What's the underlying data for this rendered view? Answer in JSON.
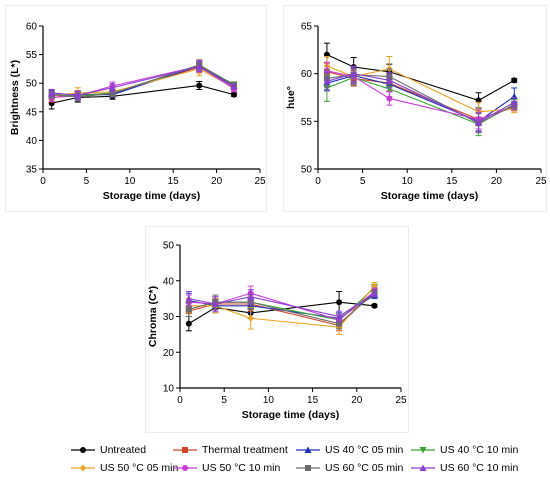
{
  "chart_data": [
    {
      "type": "line",
      "id": "brightness",
      "title": "",
      "xlabel": "Storage time (days)",
      "ylabel": "Brightness (L*)",
      "xlim": [
        0,
        25
      ],
      "ylim": [
        35,
        60
      ],
      "xticks": [
        "0",
        "5",
        "10",
        "15",
        "20",
        "25"
      ],
      "yticks": [
        "35",
        "40",
        "45",
        "50",
        "55",
        "60"
      ],
      "x": [
        1,
        4,
        8,
        18,
        22
      ],
      "series": [
        {
          "name": "Untreated",
          "values": [
            46.5,
            47.5,
            47.7,
            49.6,
            48.0
          ],
          "err": [
            1.0,
            0.8,
            0.5,
            0.7,
            0.3
          ]
        },
        {
          "name": "Thermal treatment",
          "values": [
            47.5,
            48.0,
            48.2,
            52.8,
            49.3
          ],
          "err": [
            0.8,
            0.7,
            0.6,
            1.0,
            0.5
          ]
        },
        {
          "name": "US 40 °C 05 min",
          "values": [
            48.2,
            48.0,
            48.0,
            53.0,
            49.5
          ],
          "err": [
            0.6,
            0.6,
            0.5,
            0.8,
            0.4
          ]
        },
        {
          "name": "US 40 °C 10 min",
          "values": [
            48.0,
            47.8,
            48.3,
            53.1,
            49.8
          ],
          "err": [
            0.6,
            0.7,
            0.6,
            0.8,
            0.4
          ]
        },
        {
          "name": "US 50 °C 05 min",
          "values": [
            47.8,
            48.3,
            48.5,
            52.5,
            49.2
          ],
          "err": [
            0.7,
            0.9,
            0.7,
            1.2,
            0.5
          ]
        },
        {
          "name": "US 50 °C 10 min",
          "values": [
            47.5,
            47.8,
            49.5,
            53.0,
            49.0
          ],
          "err": [
            0.7,
            0.7,
            0.7,
            0.9,
            0.5
          ]
        },
        {
          "name": "US 60 °C 05 min",
          "values": [
            48.0,
            47.6,
            48.2,
            53.2,
            49.7
          ],
          "err": [
            0.6,
            0.7,
            0.6,
            0.9,
            0.4
          ]
        },
        {
          "name": "US 60 °C 10 min",
          "values": [
            48.3,
            47.9,
            49.2,
            52.9,
            49.4
          ],
          "err": [
            0.6,
            0.7,
            0.7,
            0.9,
            0.4
          ]
        }
      ]
    },
    {
      "type": "line",
      "id": "hue",
      "title": "",
      "xlabel": "Storage time (days)",
      "ylabel": "hue°",
      "xlim": [
        0,
        25
      ],
      "ylim": [
        50,
        65
      ],
      "xticks": [
        "0",
        "5",
        "10",
        "15",
        "20",
        "25"
      ],
      "yticks": [
        "50",
        "55",
        "60",
        "65"
      ],
      "x": [
        1,
        4,
        8,
        18,
        22
      ],
      "series": [
        {
          "name": "Untreated",
          "values": [
            62.0,
            60.7,
            60.2,
            57.2,
            59.3
          ],
          "err": [
            1.2,
            1.0,
            0.8,
            0.8,
            0.2
          ]
        },
        {
          "name": "Thermal treatment",
          "values": [
            60.2,
            59.5,
            59.0,
            55.2,
            56.5
          ],
          "err": [
            0.9,
            0.8,
            0.8,
            1.0,
            0.4
          ]
        },
        {
          "name": "US 40 °C 05 min",
          "values": [
            59.0,
            59.8,
            58.9,
            55.0,
            57.6
          ],
          "err": [
            0.8,
            0.8,
            0.8,
            1.0,
            0.9
          ]
        },
        {
          "name": "US 40 °C 10 min",
          "values": [
            58.5,
            59.6,
            58.4,
            54.7,
            56.8
          ],
          "err": [
            1.4,
            0.8,
            0.8,
            1.2,
            0.5
          ]
        },
        {
          "name": "US 50 °C 05 min",
          "values": [
            60.8,
            59.7,
            60.5,
            56.0,
            56.3
          ],
          "err": [
            1.0,
            0.8,
            1.3,
            1.0,
            0.4
          ]
        },
        {
          "name": "US 50 °C 10 min",
          "values": [
            60.3,
            59.7,
            57.4,
            55.2,
            56.6
          ],
          "err": [
            0.9,
            0.8,
            0.7,
            1.0,
            0.4
          ]
        },
        {
          "name": "US 60 °C 05 min",
          "values": [
            59.5,
            59.9,
            59.7,
            54.8,
            56.7
          ],
          "err": [
            0.9,
            0.8,
            0.8,
            1.0,
            0.4
          ]
        },
        {
          "name": "US 60 °C 10 min",
          "values": [
            59.2,
            60.0,
            59.3,
            54.9,
            57.0
          ],
          "err": [
            0.9,
            0.8,
            0.8,
            1.0,
            0.5
          ]
        }
      ]
    },
    {
      "type": "line",
      "id": "chroma",
      "title": "",
      "xlabel": "Storage time (days)",
      "ylabel": "Chroma (C*)",
      "xlim": [
        0,
        25
      ],
      "ylim": [
        10,
        50
      ],
      "xticks": [
        "0",
        "5",
        "10",
        "15",
        "20",
        "25"
      ],
      "yticks": [
        "10",
        "20",
        "30",
        "40",
        "50"
      ],
      "x": [
        1,
        4,
        8,
        18,
        22
      ],
      "series": [
        {
          "name": "Untreated",
          "values": [
            28.0,
            32.5,
            31.0,
            34.0,
            33.0
          ],
          "err": [
            2.0,
            1.5,
            1.5,
            3.0,
            0.4
          ]
        },
        {
          "name": "Thermal treatment",
          "values": [
            31.5,
            33.5,
            33.5,
            27.5,
            37.0
          ],
          "err": [
            1.5,
            1.5,
            2.0,
            1.5,
            1.0
          ]
        },
        {
          "name": "US 40 °C 05 min",
          "values": [
            34.5,
            33.0,
            33.0,
            29.5,
            36.0
          ],
          "err": [
            2.0,
            2.0,
            2.0,
            1.5,
            1.0
          ]
        },
        {
          "name": "US 40 °C 10 min",
          "values": [
            32.0,
            34.0,
            34.0,
            29.0,
            38.0
          ],
          "err": [
            2.0,
            1.5,
            2.0,
            1.5,
            1.0
          ]
        },
        {
          "name": "US 50 °C 05 min",
          "values": [
            33.0,
            33.0,
            29.5,
            27.0,
            38.5
          ],
          "err": [
            2.0,
            2.0,
            3.0,
            2.0,
            1.0
          ]
        },
        {
          "name": "US 50 °C 10 min",
          "values": [
            34.0,
            33.5,
            36.5,
            29.0,
            37.0
          ],
          "err": [
            2.0,
            2.0,
            2.0,
            1.5,
            1.0
          ]
        },
        {
          "name": "US 60 °C 05 min",
          "values": [
            32.0,
            34.0,
            34.0,
            28.0,
            36.5
          ],
          "err": [
            2.0,
            2.0,
            2.0,
            1.5,
            1.0
          ]
        },
        {
          "name": "US 60 °C 10 min",
          "values": [
            35.0,
            33.5,
            35.5,
            30.0,
            36.5
          ],
          "err": [
            2.0,
            2.0,
            2.0,
            1.5,
            1.0
          ]
        }
      ]
    }
  ],
  "legend": [
    {
      "name": "Untreated",
      "color": "#000000",
      "marker": "circle"
    },
    {
      "name": "Thermal treatment",
      "color": "#d2452b",
      "marker": "square"
    },
    {
      "name": "US 40 °C 05 min",
      "color": "#1c2fb8",
      "marker": "triangle-up"
    },
    {
      "name": "US 40 °C 10 min",
      "color": "#3aa535",
      "marker": "triangle-down"
    },
    {
      "name": "US 50 °C 05 min",
      "color": "#e8a320",
      "marker": "diamond"
    },
    {
      "name": "US 50 °C 10 min",
      "color": "#c83ed6",
      "marker": "circle"
    },
    {
      "name": "US 60 °C 05 min",
      "color": "#6b6b6b",
      "marker": "square"
    },
    {
      "name": "US 60 °C 10 min",
      "color": "#8a3fd1",
      "marker": "triangle-up"
    }
  ]
}
